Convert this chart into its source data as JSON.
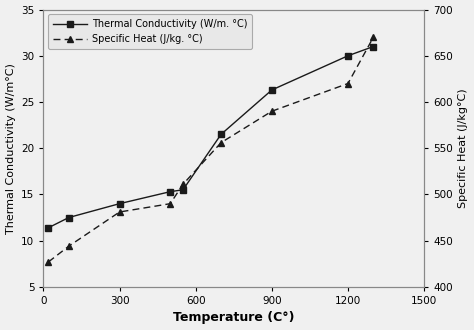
{
  "tc_temp": [
    20,
    100,
    300,
    500,
    550,
    700,
    900,
    1200,
    1300
  ],
  "tc_values": [
    11.4,
    12.5,
    14.0,
    15.3,
    15.5,
    21.5,
    26.3,
    30.0,
    31.0
  ],
  "sh_temp": [
    20,
    100,
    300,
    500,
    550,
    700,
    900,
    1200,
    1300
  ],
  "sh_values": [
    427,
    444,
    481,
    490,
    511,
    556,
    590,
    620,
    670
  ],
  "xlabel": "Temperature (C°)",
  "ylabel_left": "Thermal Conductivity (W/m°C)",
  "ylabel_right": "Specific Heat (J/kg°C)",
  "legend_tc": "Thermal Conductivity (W/m. °C)",
  "legend_sh": "Specific Heat (J/kg. °C)",
  "xlim": [
    0,
    1500
  ],
  "ylim_left": [
    5,
    35
  ],
  "ylim_right": [
    400,
    700
  ],
  "xticks": [
    0,
    300,
    600,
    900,
    1200,
    1500
  ],
  "yticks_left": [
    5,
    10,
    15,
    20,
    25,
    30,
    35
  ],
  "yticks_right": [
    400,
    450,
    500,
    550,
    600,
    650,
    700
  ],
  "tc_color": "#1a1a1a",
  "sh_color": "#1a1a1a",
  "bg_color": "#f0f0f0",
  "plot_bg": "#f0f0f0"
}
